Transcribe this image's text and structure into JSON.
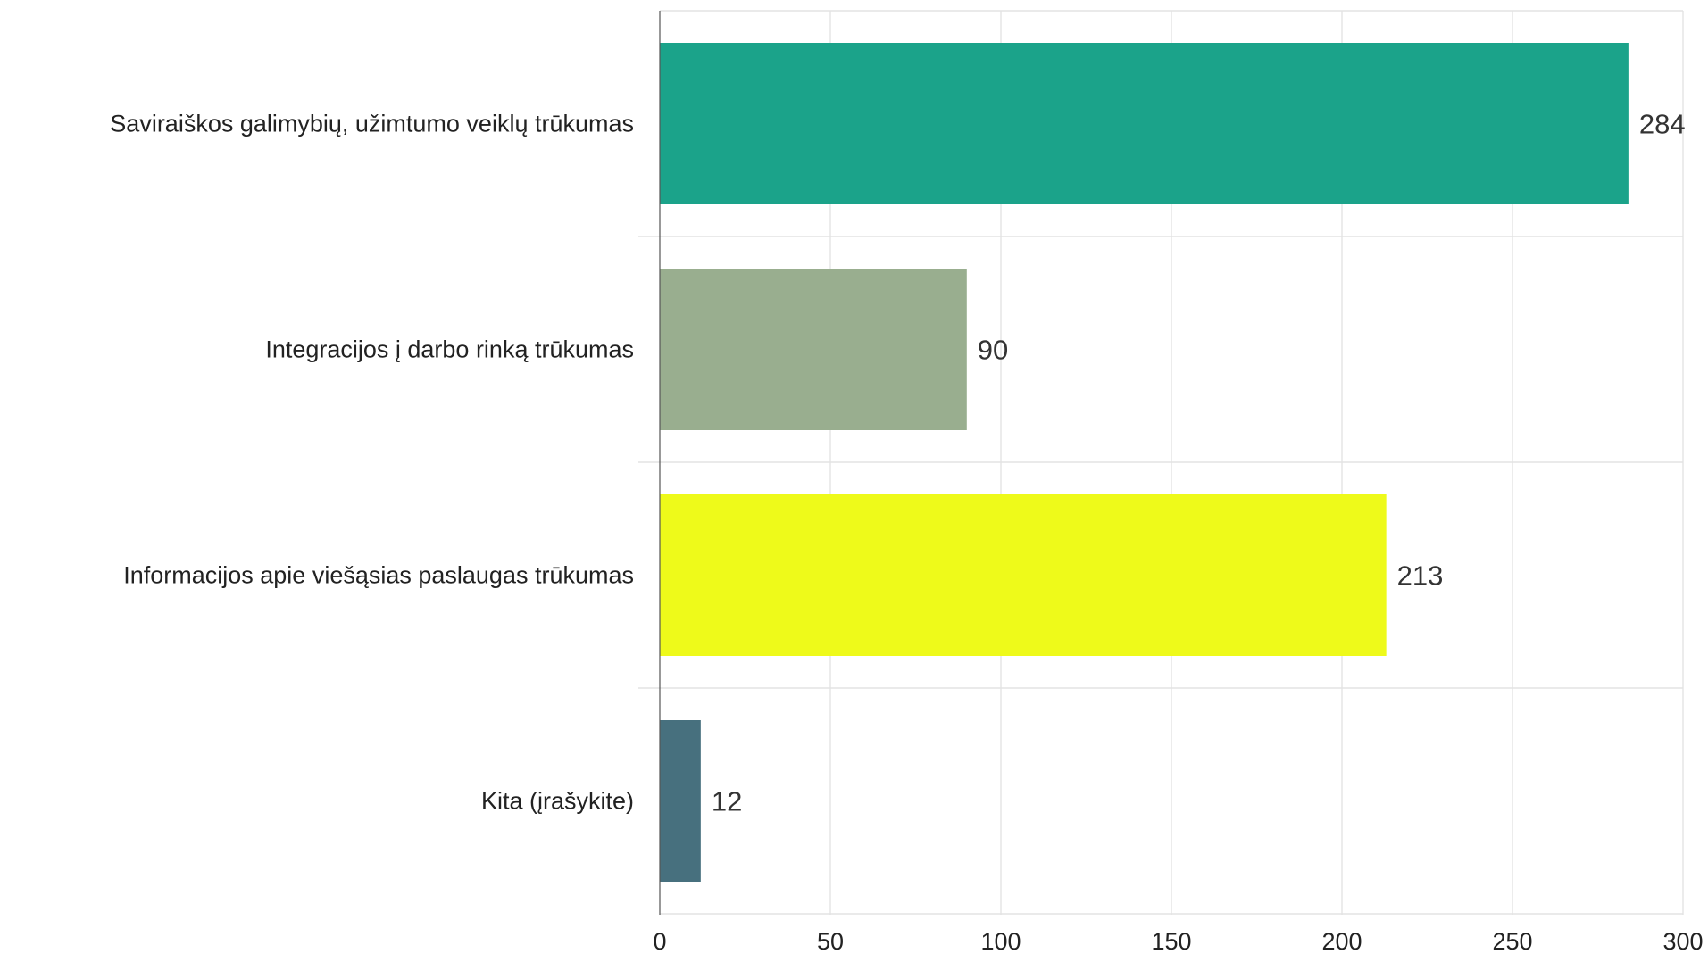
{
  "chart_data": {
    "type": "bar",
    "orientation": "horizontal",
    "categories": [
      "Saviraiškos galimybių, užimtumo veiklų trūkumas",
      "Integracijos į darbo rinką trūkumas",
      "Informacijos apie viešąsias paslaugas trūkumas",
      "Kita (įrašykite)"
    ],
    "values": [
      284,
      90,
      213,
      12
    ],
    "bar_colors": [
      "#1ba38a",
      "#99ae8f",
      "#eefa1a",
      "#47707e"
    ],
    "data_labels": [
      "284",
      "90",
      "213",
      "12"
    ],
    "xlim": [
      0,
      300
    ],
    "x_ticks": [
      0,
      50,
      100,
      150,
      200,
      250,
      300
    ],
    "x_tick_labels": [
      "0",
      "50",
      "100",
      "150",
      "200",
      "250",
      "300"
    ],
    "title": "",
    "xlabel": "",
    "ylabel": "",
    "grid": true,
    "legend": false
  }
}
